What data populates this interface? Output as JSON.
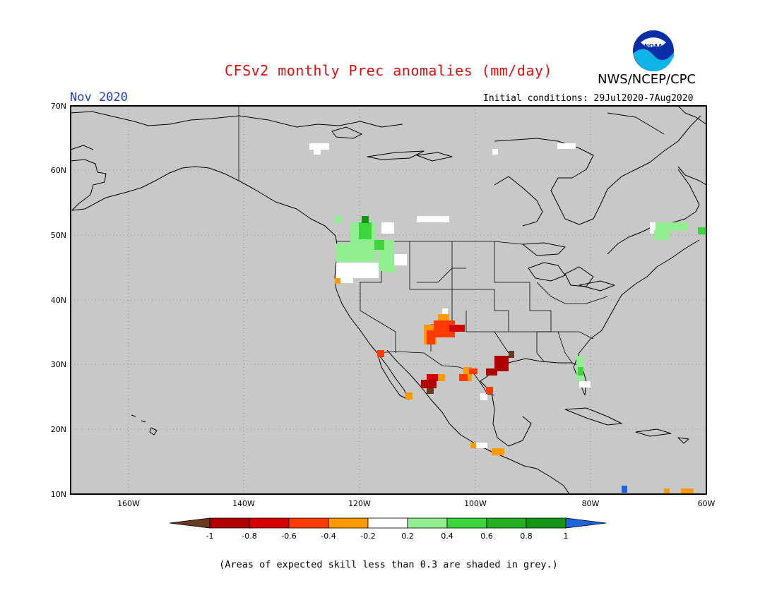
{
  "header": {
    "title": "CFSv2 monthly Prec anomalies (mm/day)",
    "agency": "NWS/NCEP/CPC",
    "logo_text": "NOAA",
    "month": "Nov 2020",
    "initial_conditions": "Initial conditions: 29Jul2020-7Aug2020"
  },
  "map": {
    "lat_ticks": [
      "70N",
      "60N",
      "50N",
      "40N",
      "30N",
      "20N",
      "10N"
    ],
    "lon_ticks": [
      "160W",
      "140W",
      "120W",
      "100W",
      "80W",
      "60W"
    ],
    "lat_range": [
      10,
      70
    ],
    "lon_range": [
      -170,
      -60
    ],
    "background_color": "#c8c8c8",
    "grid": "dotted"
  },
  "legend": {
    "labels": [
      "-1",
      "-0.8",
      "-0.6",
      "-0.4",
      "-0.2",
      "0.2",
      "0.4",
      "0.6",
      "0.8",
      "1"
    ],
    "colors": {
      "lt_-1": "#6b3a1e",
      "-1_-0.8": "#b10000",
      "-0.8_-0.6": "#d40000",
      "-0.6_-0.4": "#ff3a00",
      "-0.4_-0.2": "#ff9900",
      "-0.2_0.2": "#ffffff",
      "0.2_0.4": "#90ee90",
      "0.4_0.6": "#3cd63c",
      "0.6_0.8": "#22b022",
      "0.8_1": "#139613",
      "gt_1": "#1e63e0"
    }
  },
  "footnote": "(Areas of expected skill less than 0.3 are shaded in grey.)"
}
